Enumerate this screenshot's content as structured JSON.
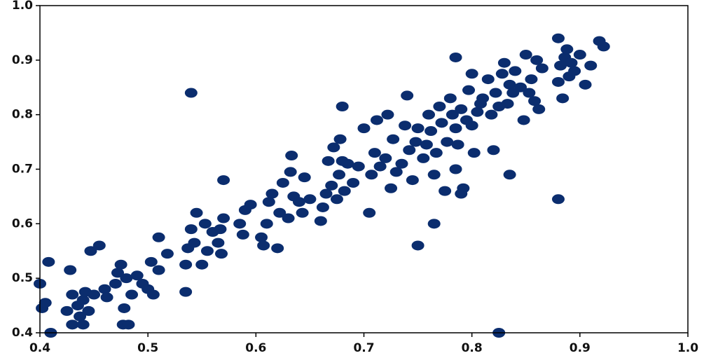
{
  "chart_data": {
    "type": "scatter",
    "color": "#0b2d6e",
    "x": [
      0.4,
      0.402,
      0.405,
      0.408,
      0.425,
      0.428,
      0.43,
      0.43,
      0.435,
      0.437,
      0.44,
      0.44,
      0.442,
      0.445,
      0.447,
      0.45,
      0.455,
      0.46,
      0.462,
      0.47,
      0.472,
      0.475,
      0.477,
      0.478,
      0.48,
      0.482,
      0.485,
      0.49,
      0.495,
      0.5,
      0.503,
      0.505,
      0.51,
      0.51,
      0.518,
      0.535,
      0.535,
      0.537,
      0.54,
      0.543,
      0.545,
      0.55,
      0.553,
      0.555,
      0.56,
      0.565,
      0.567,
      0.568,
      0.57,
      0.585,
      0.588,
      0.59,
      0.595,
      0.605,
      0.607,
      0.61,
      0.612,
      0.615,
      0.62,
      0.622,
      0.625,
      0.63,
      0.632,
      0.633,
      0.635,
      0.64,
      0.643,
      0.645,
      0.65,
      0.66,
      0.662,
      0.665,
      0.667,
      0.67,
      0.672,
      0.675,
      0.677,
      0.678,
      0.68,
      0.682,
      0.685,
      0.69,
      0.695,
      0.7,
      0.705,
      0.707,
      0.71,
      0.712,
      0.715,
      0.72,
      0.722,
      0.725,
      0.727,
      0.73,
      0.735,
      0.738,
      0.74,
      0.742,
      0.745,
      0.748,
      0.75,
      0.755,
      0.758,
      0.76,
      0.762,
      0.765,
      0.767,
      0.77,
      0.772,
      0.775,
      0.777,
      0.78,
      0.782,
      0.785,
      0.787,
      0.79,
      0.792,
      0.795,
      0.797,
      0.8,
      0.802,
      0.805,
      0.808,
      0.81,
      0.815,
      0.818,
      0.82,
      0.822,
      0.825,
      0.828,
      0.83,
      0.833,
      0.835,
      0.838,
      0.84,
      0.845,
      0.848,
      0.85,
      0.853,
      0.855,
      0.858,
      0.86,
      0.862,
      0.865,
      0.88,
      0.882,
      0.884,
      0.886,
      0.888,
      0.89,
      0.892,
      0.895,
      0.9,
      0.905,
      0.91,
      0.922,
      0.75,
      0.765,
      0.835,
      0.88,
      0.825,
      0.54,
      0.41,
      0.918,
      0.88,
      0.68,
      0.57,
      0.785,
      0.8,
      0.79,
      0.785
    ],
    "y": [
      0.49,
      0.445,
      0.455,
      0.53,
      0.44,
      0.515,
      0.415,
      0.47,
      0.45,
      0.43,
      0.46,
      0.415,
      0.475,
      0.44,
      0.55,
      0.47,
      0.56,
      0.48,
      0.465,
      0.49,
      0.51,
      0.525,
      0.415,
      0.445,
      0.5,
      0.415,
      0.47,
      0.505,
      0.49,
      0.48,
      0.53,
      0.47,
      0.575,
      0.515,
      0.545,
      0.475,
      0.525,
      0.555,
      0.59,
      0.565,
      0.62,
      0.525,
      0.6,
      0.55,
      0.585,
      0.565,
      0.59,
      0.545,
      0.61,
      0.6,
      0.58,
      0.625,
      0.635,
      0.575,
      0.56,
      0.6,
      0.64,
      0.655,
      0.555,
      0.62,
      0.675,
      0.61,
      0.695,
      0.725,
      0.65,
      0.64,
      0.62,
      0.685,
      0.645,
      0.605,
      0.63,
      0.655,
      0.715,
      0.67,
      0.74,
      0.645,
      0.69,
      0.755,
      0.715,
      0.66,
      0.71,
      0.675,
      0.705,
      0.775,
      0.62,
      0.69,
      0.73,
      0.79,
      0.705,
      0.72,
      0.8,
      0.665,
      0.755,
      0.695,
      0.71,
      0.78,
      0.835,
      0.735,
      0.68,
      0.75,
      0.775,
      0.72,
      0.745,
      0.8,
      0.77,
      0.69,
      0.73,
      0.815,
      0.785,
      0.66,
      0.75,
      0.83,
      0.8,
      0.775,
      0.745,
      0.81,
      0.665,
      0.79,
      0.845,
      0.78,
      0.73,
      0.805,
      0.82,
      0.83,
      0.865,
      0.8,
      0.735,
      0.84,
      0.815,
      0.875,
      0.895,
      0.82,
      0.855,
      0.84,
      0.88,
      0.85,
      0.79,
      0.91,
      0.84,
      0.865,
      0.825,
      0.9,
      0.81,
      0.885,
      0.86,
      0.89,
      0.83,
      0.905,
      0.92,
      0.87,
      0.895,
      0.88,
      0.91,
      0.855,
      0.89,
      0.925,
      0.56,
      0.6,
      0.69,
      0.645,
      0.4,
      0.84,
      0.4,
      0.935,
      0.94,
      0.815,
      0.68,
      0.905,
      0.875,
      0.655,
      0.7
    ],
    "xlim": [
      0.4,
      1.0
    ],
    "ylim": [
      0.4,
      1.0
    ],
    "xticks": [
      0.4,
      0.5,
      0.6,
      0.7,
      0.8,
      0.9,
      {
        "value": 1,
        "label": "1.0"
      }
    ],
    "yticks": [
      0.4,
      0.5,
      0.6,
      0.7,
      0.8,
      0.9,
      {
        "value": 1,
        "label": "1.0"
      }
    ]
  }
}
